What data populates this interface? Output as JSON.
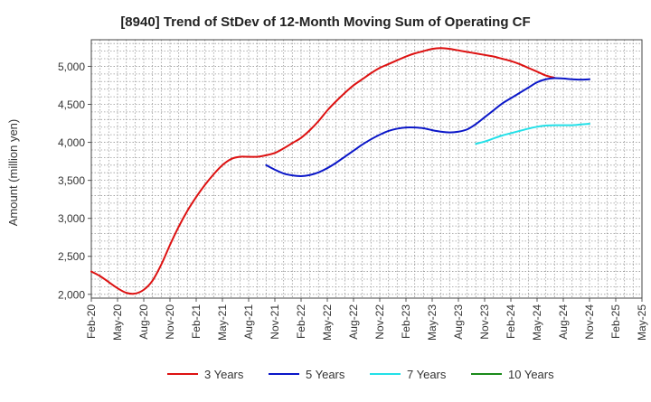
{
  "chart_data": {
    "type": "line",
    "title": "[8940]  Trend of StDev of 12-Month Moving Sum of Operating CF",
    "xlabel": "",
    "ylabel": "Amount (million yen)",
    "ylim": [
      1950,
      5350
    ],
    "yticks": [
      2000,
      2500,
      3000,
      3500,
      4000,
      4500,
      5000
    ],
    "ytick_labels": [
      "2,000",
      "2,500",
      "3,000",
      "3,500",
      "4,000",
      "4,500",
      "5,000"
    ],
    "x_categories": [
      "Feb-20",
      "May-20",
      "Aug-20",
      "Nov-20",
      "Feb-21",
      "May-21",
      "Aug-21",
      "Nov-21",
      "Feb-22",
      "May-22",
      "Aug-22",
      "Nov-22",
      "Feb-23",
      "May-23",
      "Aug-23",
      "Nov-23",
      "Feb-24",
      "May-24",
      "Aug-24",
      "Nov-24",
      "Feb-25",
      "May-25"
    ],
    "grid": true,
    "legend_position": "bottom",
    "series": [
      {
        "name": "3 Years",
        "color": "#dd1111",
        "points": [
          [
            "Feb-20",
            2300
          ],
          [
            "Mar-20",
            2240
          ],
          [
            "Apr-20",
            2160
          ],
          [
            "May-20",
            2080
          ],
          [
            "Jun-20",
            2020
          ],
          [
            "Jul-20",
            2010
          ],
          [
            "Aug-20",
            2060
          ],
          [
            "Sep-20",
            2180
          ],
          [
            "Oct-20",
            2390
          ],
          [
            "Nov-20",
            2650
          ],
          [
            "Dec-20",
            2890
          ],
          [
            "Jan-21",
            3100
          ],
          [
            "Feb-21",
            3280
          ],
          [
            "Mar-21",
            3440
          ],
          [
            "Apr-21",
            3580
          ],
          [
            "May-21",
            3700
          ],
          [
            "Jun-21",
            3780
          ],
          [
            "Jul-21",
            3810
          ],
          [
            "Aug-21",
            3810
          ],
          [
            "Sep-21",
            3810
          ],
          [
            "Oct-21",
            3830
          ],
          [
            "Nov-21",
            3860
          ],
          [
            "Dec-21",
            3920
          ],
          [
            "Jan-22",
            3990
          ],
          [
            "Feb-22",
            4060
          ],
          [
            "Mar-22",
            4160
          ],
          [
            "Apr-22",
            4280
          ],
          [
            "May-22",
            4420
          ],
          [
            "Jun-22",
            4540
          ],
          [
            "Jul-22",
            4650
          ],
          [
            "Aug-22",
            4750
          ],
          [
            "Sep-22",
            4830
          ],
          [
            "Oct-22",
            4910
          ],
          [
            "Nov-22",
            4980
          ],
          [
            "Dec-22",
            5030
          ],
          [
            "Jan-23",
            5080
          ],
          [
            "Feb-23",
            5130
          ],
          [
            "Mar-23",
            5170
          ],
          [
            "Apr-23",
            5200
          ],
          [
            "May-23",
            5230
          ],
          [
            "Jun-23",
            5240
          ],
          [
            "Jul-23",
            5230
          ],
          [
            "Aug-23",
            5210
          ],
          [
            "Sep-23",
            5190
          ],
          [
            "Oct-23",
            5170
          ],
          [
            "Nov-23",
            5150
          ],
          [
            "Dec-23",
            5130
          ],
          [
            "Jan-24",
            5100
          ],
          [
            "Feb-24",
            5070
          ],
          [
            "Mar-24",
            5030
          ],
          [
            "Apr-24",
            4980
          ],
          [
            "May-24",
            4930
          ],
          [
            "Jun-24",
            4880
          ],
          [
            "Jul-24",
            4850
          ]
        ]
      },
      {
        "name": "5 Years",
        "color": "#0a16c8",
        "points": [
          [
            "Oct-21",
            3700
          ],
          [
            "Nov-21",
            3640
          ],
          [
            "Dec-21",
            3590
          ],
          [
            "Jan-22",
            3565
          ],
          [
            "Feb-22",
            3555
          ],
          [
            "Mar-22",
            3570
          ],
          [
            "Apr-22",
            3605
          ],
          [
            "May-22",
            3660
          ],
          [
            "Jun-22",
            3730
          ],
          [
            "Jul-22",
            3810
          ],
          [
            "Aug-22",
            3890
          ],
          [
            "Sep-22",
            3970
          ],
          [
            "Oct-22",
            4040
          ],
          [
            "Nov-22",
            4100
          ],
          [
            "Dec-22",
            4150
          ],
          [
            "Jan-23",
            4180
          ],
          [
            "Feb-23",
            4195
          ],
          [
            "Mar-23",
            4195
          ],
          [
            "Apr-23",
            4185
          ],
          [
            "May-23",
            4160
          ],
          [
            "Jun-23",
            4140
          ],
          [
            "Jul-23",
            4130
          ],
          [
            "Aug-23",
            4140
          ],
          [
            "Sep-23",
            4170
          ],
          [
            "Oct-23",
            4240
          ],
          [
            "Nov-23",
            4330
          ],
          [
            "Dec-23",
            4420
          ],
          [
            "Jan-24",
            4510
          ],
          [
            "Feb-24",
            4580
          ],
          [
            "Mar-24",
            4650
          ],
          [
            "Apr-24",
            4720
          ],
          [
            "May-24",
            4790
          ],
          [
            "Jun-24",
            4830
          ],
          [
            "Jul-24",
            4845
          ],
          [
            "Aug-24",
            4840
          ],
          [
            "Sep-24",
            4830
          ],
          [
            "Oct-24",
            4825
          ],
          [
            "Nov-24",
            4830
          ]
        ]
      },
      {
        "name": "7 Years",
        "color": "#22e0e8",
        "points": [
          [
            "Oct-23",
            3980
          ],
          [
            "Nov-23",
            4010
          ],
          [
            "Dec-23",
            4050
          ],
          [
            "Jan-24",
            4090
          ],
          [
            "Feb-24",
            4120
          ],
          [
            "Mar-24",
            4150
          ],
          [
            "Apr-24",
            4180
          ],
          [
            "May-24",
            4205
          ],
          [
            "Jun-24",
            4220
          ],
          [
            "Jul-24",
            4225
          ],
          [
            "Aug-24",
            4225
          ],
          [
            "Sep-24",
            4225
          ],
          [
            "Oct-24",
            4235
          ],
          [
            "Nov-24",
            4245
          ]
        ]
      },
      {
        "name": "10 Years",
        "color": "#1a8a1a",
        "points": []
      }
    ]
  }
}
